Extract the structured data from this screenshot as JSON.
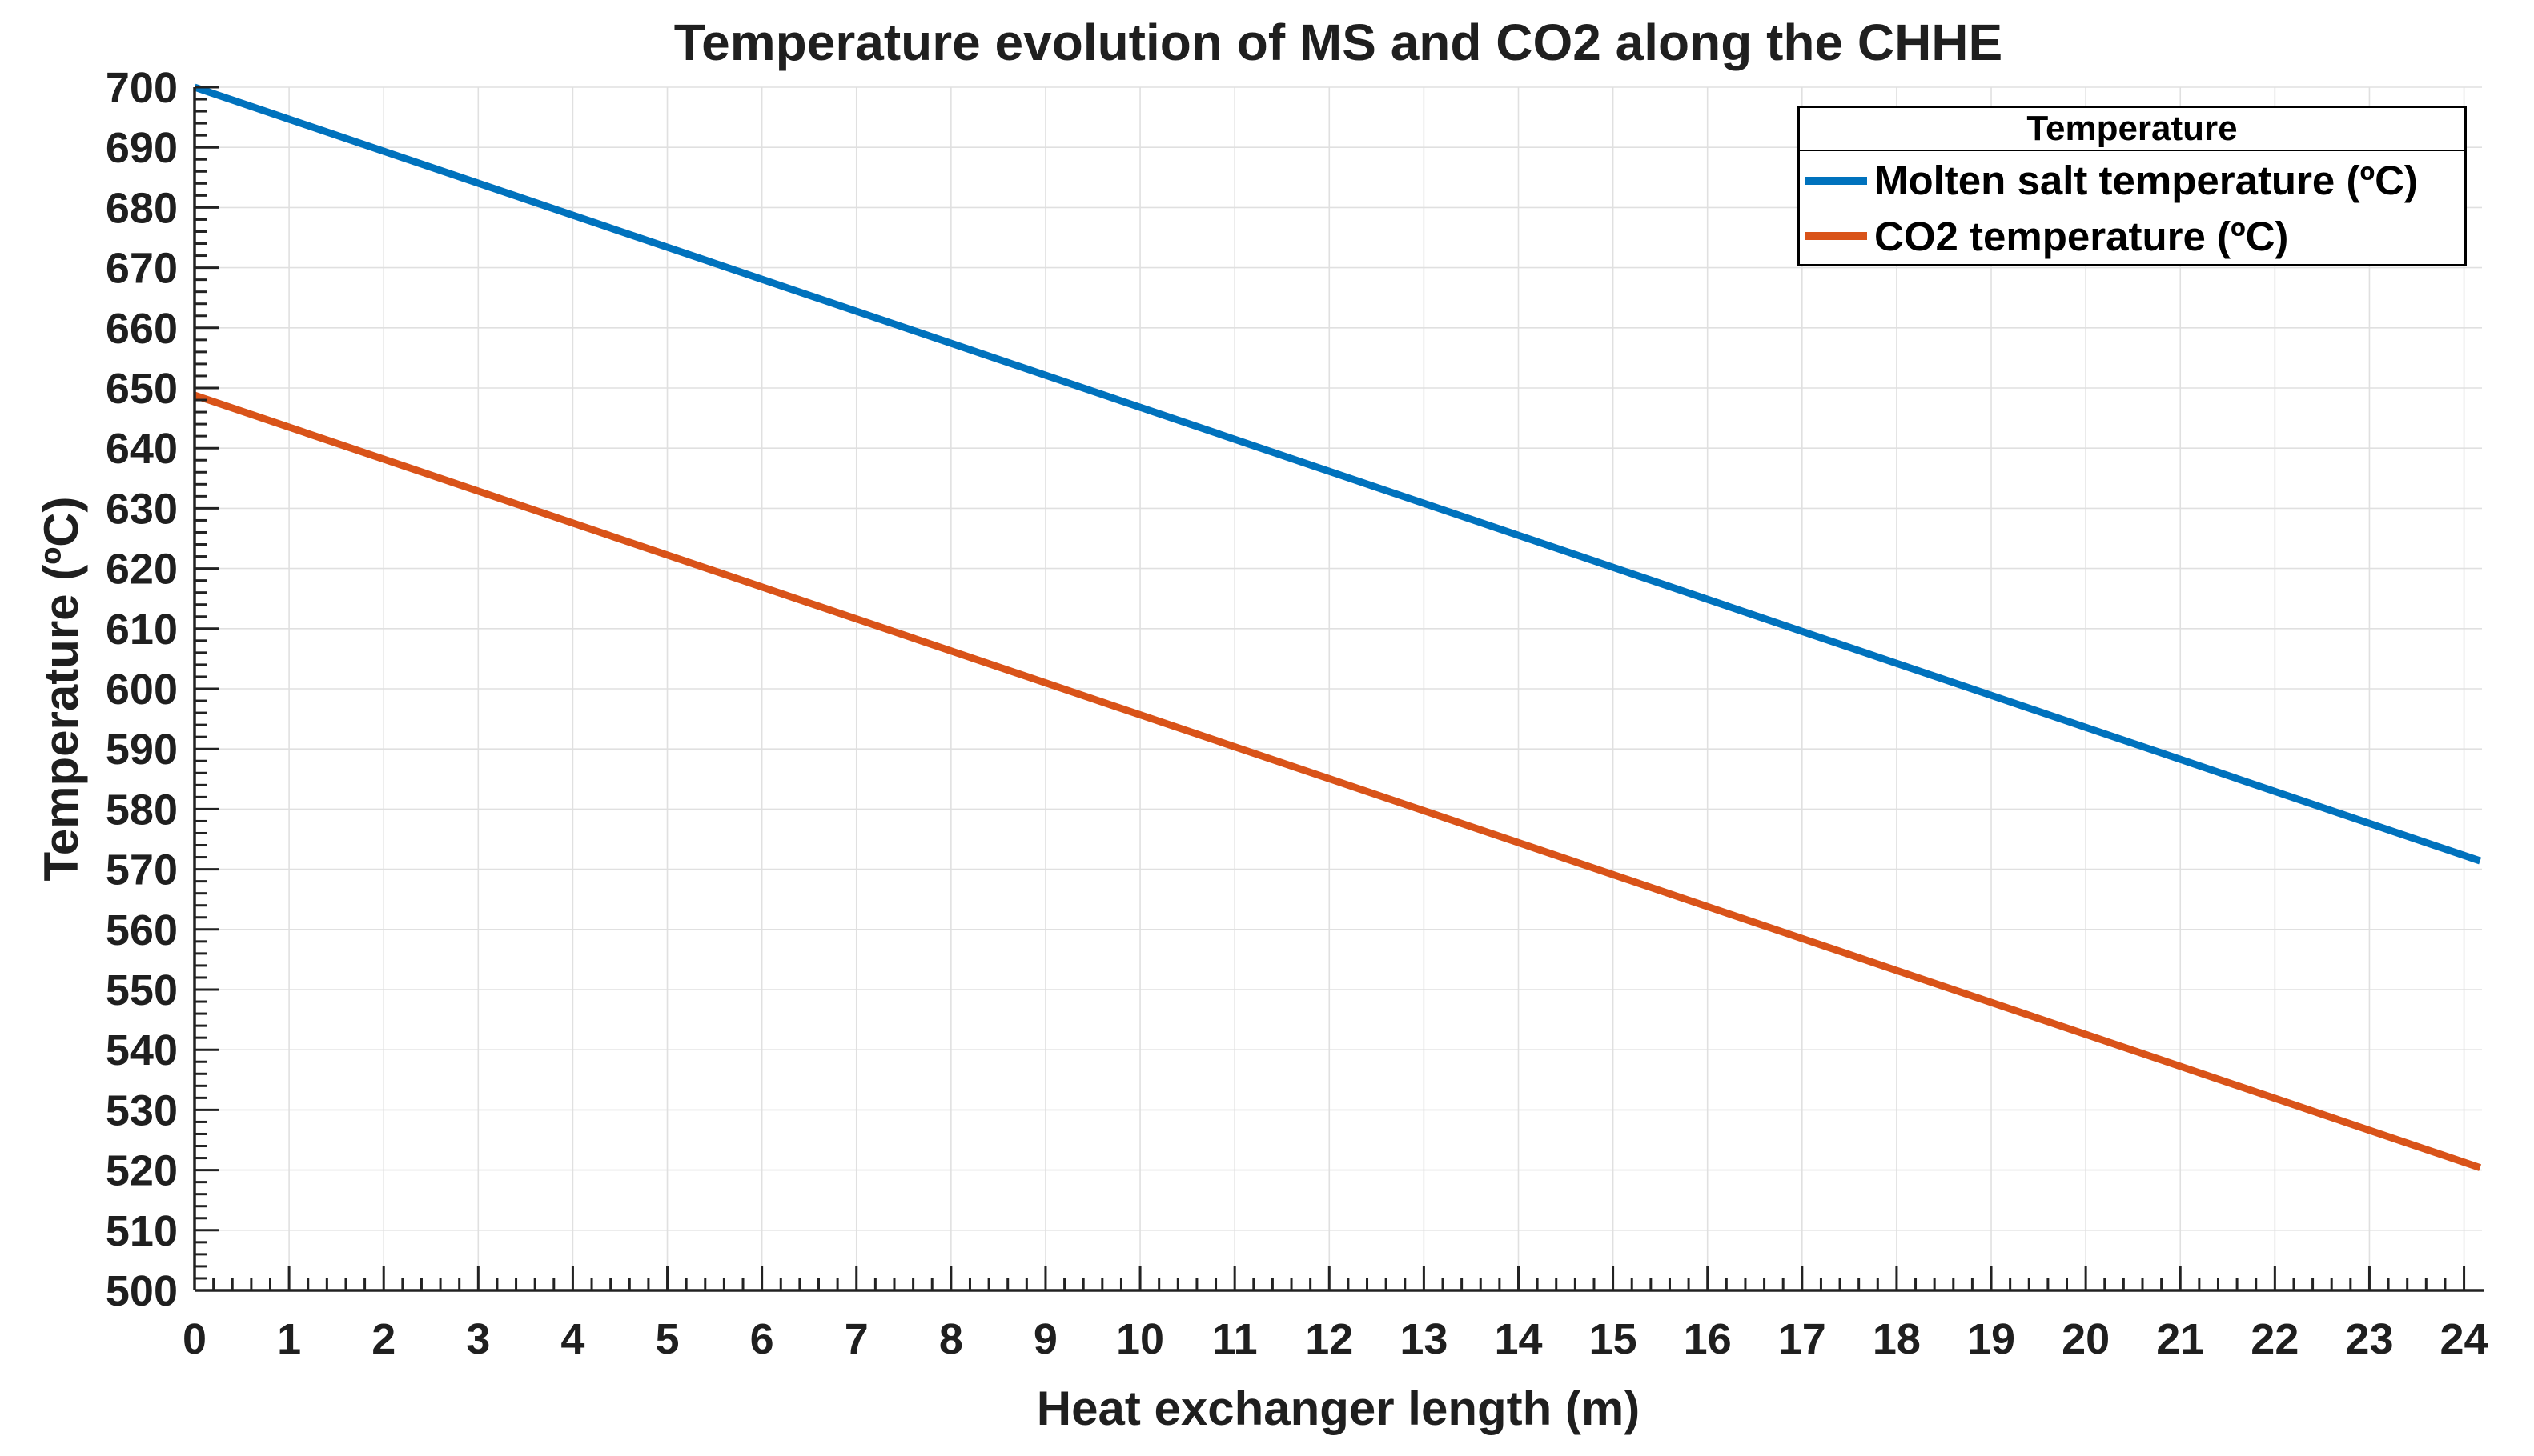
{
  "chart_data": {
    "type": "line",
    "title": "Temperature evolution of MS and CO2 along the CHHE",
    "xlabel": "Heat exchanger length (m)",
    "ylabel": "Temperature (ºC)",
    "xlim": [
      0,
      24.19
    ],
    "ylim": [
      500,
      700
    ],
    "grid": true,
    "x_major_step": 1,
    "x_minor_step": 0.2,
    "y_major_step": 10,
    "y_minor_step": 2,
    "xtick_labels": [
      "0",
      "1",
      "2",
      "3",
      "4",
      "5",
      "6",
      "7",
      "8",
      "9",
      "10",
      "11",
      "12",
      "13",
      "14",
      "15",
      "16",
      "17",
      "18",
      "19",
      "20",
      "21",
      "22",
      "23",
      "24"
    ],
    "ytick_labels": [
      "500",
      "510",
      "520",
      "530",
      "540",
      "550",
      "560",
      "570",
      "580",
      "590",
      "600",
      "610",
      "620",
      "630",
      "640",
      "650",
      "660",
      "670",
      "680",
      "690",
      "700"
    ],
    "legend": {
      "title": "Temperature",
      "position": "top-right"
    },
    "series": [
      {
        "name": "Molten salt temperature (ºC)",
        "color": "#0072BD",
        "x": [
          0,
          24.17
        ],
        "values": [
          700,
          571.4
        ]
      },
      {
        "name": "CO2 temperature (ºC)",
        "color": "#D95319",
        "x": [
          0,
          24.17
        ],
        "values": [
          648.8,
          520.4
        ]
      }
    ],
    "colors": {
      "molten_salt_line": "#0072BD",
      "co2_line": "#D95319",
      "grid": "#E0E0E0",
      "axis": "#222222",
      "text": "#1F1F1F",
      "legend_border": "#000000",
      "background": "#FFFFFF"
    }
  }
}
